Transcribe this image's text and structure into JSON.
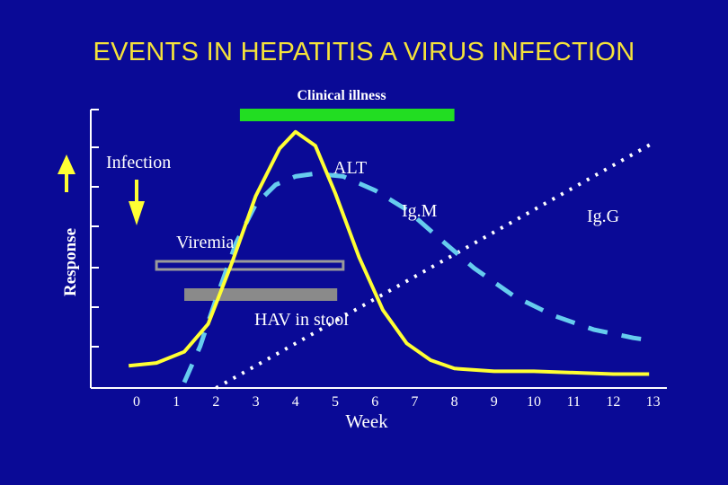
{
  "title": "EVENTS IN HEPATITIS A VIRUS INFECTION",
  "chart_data": {
    "type": "line",
    "title": "EVENTS IN HEPATITIS A VIRUS INFECTION",
    "xlabel": "Week",
    "ylabel": "Response",
    "xlim": [
      -1.1,
      13.2
    ],
    "ylim": [
      0,
      10
    ],
    "x_ticks": [
      0,
      1,
      2,
      3,
      4,
      5,
      6,
      7,
      8,
      9,
      10,
      11,
      12,
      13
    ],
    "series": [
      {
        "name": "ALT",
        "color": "#ffff33",
        "style": "solid",
        "points": [
          [
            -0.2,
            0.8
          ],
          [
            0.5,
            0.9
          ],
          [
            1.2,
            1.3
          ],
          [
            1.8,
            2.3
          ],
          [
            2.4,
            4.5
          ],
          [
            3.0,
            6.9
          ],
          [
            3.6,
            8.6
          ],
          [
            4.0,
            9.2
          ],
          [
            4.5,
            8.7
          ],
          [
            5.0,
            7.0
          ],
          [
            5.6,
            4.7
          ],
          [
            6.2,
            2.8
          ],
          [
            6.8,
            1.6
          ],
          [
            7.4,
            1.0
          ],
          [
            8.0,
            0.7
          ],
          [
            9.0,
            0.6
          ],
          [
            10.0,
            0.6
          ],
          [
            11.0,
            0.55
          ],
          [
            12.0,
            0.5
          ],
          [
            12.9,
            0.5
          ]
        ]
      },
      {
        "name": "IgM",
        "color": "#66ccee",
        "style": "dashed",
        "points": [
          [
            1.2,
            0.2
          ],
          [
            1.6,
            1.5
          ],
          [
            2.0,
            3.2
          ],
          [
            2.5,
            5.2
          ],
          [
            3.0,
            6.6
          ],
          [
            3.5,
            7.3
          ],
          [
            4.0,
            7.6
          ],
          [
            4.5,
            7.7
          ],
          [
            5.2,
            7.6
          ],
          [
            6.0,
            7.1
          ],
          [
            6.8,
            6.4
          ],
          [
            7.6,
            5.4
          ],
          [
            8.5,
            4.3
          ],
          [
            9.5,
            3.3
          ],
          [
            10.5,
            2.6
          ],
          [
            11.5,
            2.1
          ],
          [
            12.5,
            1.8
          ],
          [
            13.0,
            1.7
          ]
        ]
      },
      {
        "name": "IgG",
        "color": "#ffffff",
        "style": "dotted",
        "points": [
          [
            2.0,
            0.0
          ],
          [
            4.0,
            1.6
          ],
          [
            6.0,
            3.2
          ],
          [
            8.0,
            4.8
          ],
          [
            10.0,
            6.4
          ],
          [
            12.0,
            8.0
          ],
          [
            13.0,
            8.8
          ]
        ]
      }
    ],
    "ranges": [
      {
        "name": "Clinical illness",
        "start": 2.6,
        "end": 8.0,
        "color": "#22dd22",
        "style": "filled"
      },
      {
        "name": "Viremia",
        "start": 0.5,
        "end": 5.2,
        "color": "#9a9a9a",
        "style": "outline"
      },
      {
        "name": "HAV in stool",
        "start": 1.2,
        "end": 5.05,
        "color": "#8a8a8a",
        "style": "filled"
      }
    ],
    "annotations": [
      "Clinical illness",
      "Infection",
      "ALT",
      "IgM",
      "IgG",
      "Viremia",
      "HAV in stool"
    ]
  },
  "labels": {
    "clinical_illness": "Clinical illness",
    "infection": "Infection",
    "alt": "ALT",
    "igm": "Ig.M",
    "igg": "Ig.G",
    "viremia": "Viremia",
    "hav_stool": "HAV in stool",
    "xlabel": "Week",
    "ylabel": "Response"
  },
  "colors": {
    "background": "#0a0a96",
    "title": "#f5e23a",
    "axis": "#ffffff",
    "arrow": "#ffff33"
  }
}
